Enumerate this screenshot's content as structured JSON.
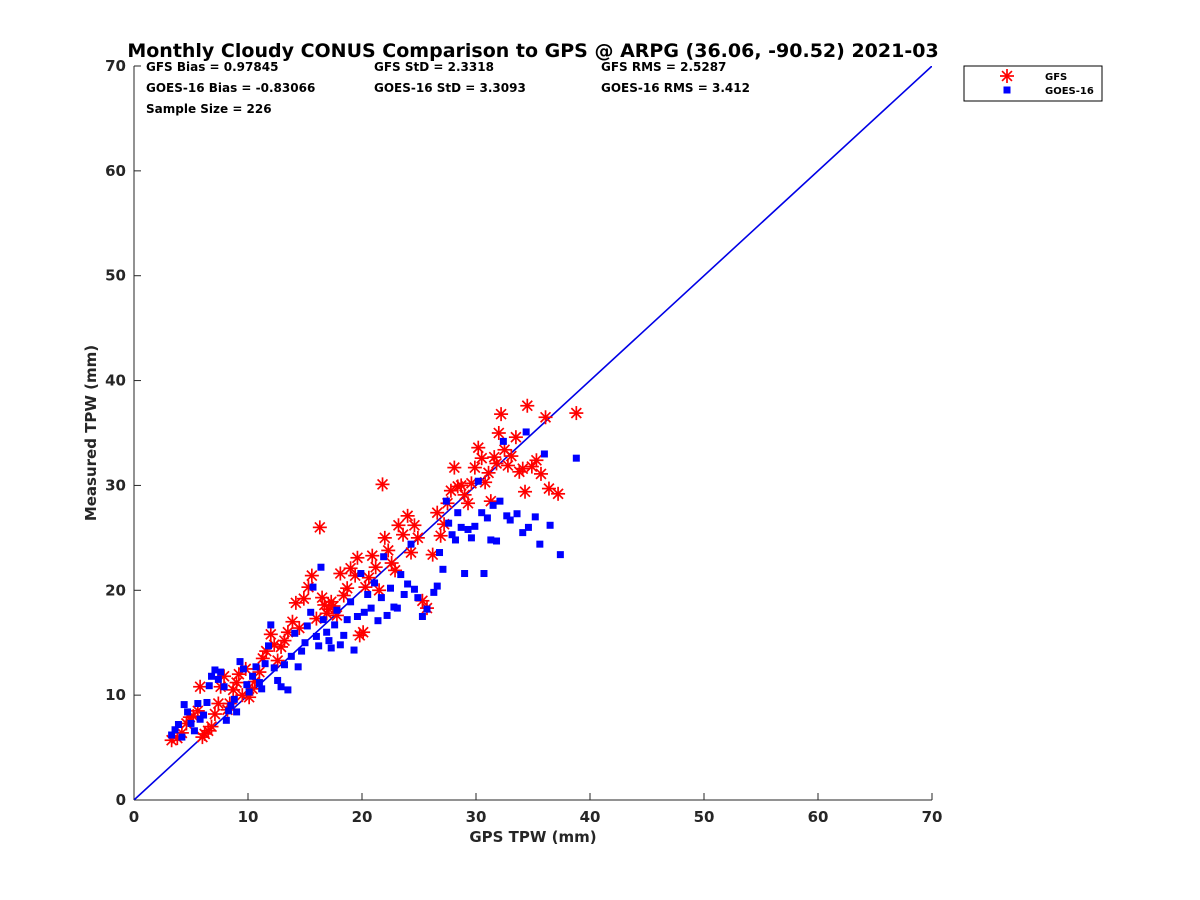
{
  "chart_data": {
    "type": "scatter",
    "title": "Monthly Cloudy CONUS Comparison to GPS @ ARPG (36.06, -90.52) 2021-03",
    "xlabel": "GPS TPW (mm)",
    "ylabel": "Measured TPW (mm)",
    "xlim": [
      0,
      70
    ],
    "ylim": [
      0,
      70
    ],
    "xticks": [
      "0",
      "10",
      "20",
      "30",
      "40",
      "50",
      "60",
      "70"
    ],
    "yticks": [
      "0",
      "10",
      "20",
      "30",
      "40",
      "50",
      "60",
      "70"
    ],
    "grid": false,
    "legend_position": "top-right-outside",
    "stats": {
      "gfs_bias": "GFS Bias = 0.97845",
      "gfs_std": "GFS StD = 2.3318",
      "gfs_rms": "GFS RMS = 2.5287",
      "goes_bias": "GOES-16 Bias = -0.83066",
      "goes_std": "GOES-16 StD = 3.3093",
      "goes_rms": "GOES-16 RMS = 3.412",
      "sample_size": "Sample Size = 226"
    },
    "reference_line": {
      "from": [
        0,
        0
      ],
      "to": [
        70,
        70
      ],
      "color": "#0000e6"
    },
    "series": [
      {
        "name": "GFS",
        "marker": "asterisk",
        "color": "#ff0000",
        "points": [
          [
            3.3,
            5.7
          ],
          [
            3.8,
            5.9
          ],
          [
            4.2,
            6.4
          ],
          [
            4.6,
            7.3
          ],
          [
            4.9,
            7.9
          ],
          [
            5.2,
            8.0
          ],
          [
            5.6,
            8.5
          ],
          [
            5.8,
            10.8
          ],
          [
            6.0,
            6.0
          ],
          [
            6.2,
            6.3
          ],
          [
            6.5,
            6.6
          ],
          [
            6.8,
            7.0
          ],
          [
            7.1,
            8.2
          ],
          [
            7.4,
            9.2
          ],
          [
            7.6,
            10.8
          ],
          [
            7.9,
            11.8
          ],
          [
            8.2,
            8.6
          ],
          [
            8.4,
            9.2
          ],
          [
            8.7,
            10.5
          ],
          [
            9.0,
            11.2
          ],
          [
            9.2,
            12.0
          ],
          [
            9.5,
            10.0
          ],
          [
            9.8,
            12.5
          ],
          [
            10.1,
            9.8
          ],
          [
            10.4,
            10.6
          ],
          [
            10.6,
            11.3
          ],
          [
            11.0,
            12.2
          ],
          [
            11.3,
            13.5
          ],
          [
            11.6,
            14.2
          ],
          [
            12.0,
            15.8
          ],
          [
            12.3,
            14.8
          ],
          [
            12.6,
            13.3
          ],
          [
            12.9,
            14.6
          ],
          [
            13.2,
            15.2
          ],
          [
            13.5,
            16.0
          ],
          [
            13.9,
            17.0
          ],
          [
            14.2,
            18.8
          ],
          [
            14.5,
            16.4
          ],
          [
            14.9,
            19.2
          ],
          [
            15.3,
            20.3
          ],
          [
            15.6,
            21.4
          ],
          [
            16.0,
            17.3
          ],
          [
            16.3,
            26.0
          ],
          [
            16.5,
            19.3
          ],
          [
            16.7,
            18.6
          ],
          [
            16.9,
            17.8
          ],
          [
            17.1,
            18.2
          ],
          [
            17.3,
            18.9
          ],
          [
            17.5,
            18.5
          ],
          [
            17.8,
            17.6
          ],
          [
            18.1,
            21.6
          ],
          [
            18.4,
            19.5
          ],
          [
            18.7,
            20.2
          ],
          [
            19.0,
            22.1
          ],
          [
            19.4,
            21.4
          ],
          [
            19.6,
            23.1
          ],
          [
            19.8,
            15.7
          ],
          [
            20.1,
            16.0
          ],
          [
            20.3,
            20.3
          ],
          [
            20.6,
            21.2
          ],
          [
            20.9,
            23.3
          ],
          [
            21.2,
            22.2
          ],
          [
            21.5,
            20.0
          ],
          [
            21.8,
            30.1
          ],
          [
            22.0,
            25.0
          ],
          [
            22.3,
            23.8
          ],
          [
            22.6,
            22.6
          ],
          [
            22.9,
            21.9
          ],
          [
            23.2,
            26.2
          ],
          [
            23.6,
            25.3
          ],
          [
            24.0,
            27.1
          ],
          [
            24.3,
            23.6
          ],
          [
            24.6,
            26.2
          ],
          [
            24.9,
            25.0
          ],
          [
            25.3,
            19.0
          ],
          [
            25.7,
            18.3
          ],
          [
            26.2,
            23.4
          ],
          [
            26.6,
            27.4
          ],
          [
            26.9,
            25.2
          ],
          [
            27.2,
            26.3
          ],
          [
            27.5,
            28.3
          ],
          [
            27.8,
            29.5
          ],
          [
            28.1,
            31.7
          ],
          [
            28.4,
            29.9
          ],
          [
            28.7,
            30.0
          ],
          [
            29.0,
            29.1
          ],
          [
            29.3,
            28.3
          ],
          [
            29.6,
            30.2
          ],
          [
            29.9,
            31.7
          ],
          [
            30.2,
            33.6
          ],
          [
            30.5,
            32.6
          ],
          [
            30.8,
            30.3
          ],
          [
            31.1,
            31.2
          ],
          [
            31.3,
            28.5
          ],
          [
            31.6,
            32.7
          ],
          [
            31.8,
            32.1
          ],
          [
            32.0,
            35.0
          ],
          [
            32.2,
            36.8
          ],
          [
            32.5,
            33.4
          ],
          [
            32.8,
            31.9
          ],
          [
            33.1,
            32.8
          ],
          [
            33.5,
            34.6
          ],
          [
            33.8,
            31.3
          ],
          [
            34.1,
            31.6
          ],
          [
            34.3,
            29.4
          ],
          [
            34.5,
            37.6
          ],
          [
            34.9,
            31.8
          ],
          [
            35.3,
            32.4
          ],
          [
            35.7,
            31.1
          ],
          [
            36.1,
            36.5
          ],
          [
            36.4,
            29.7
          ],
          [
            37.2,
            29.2
          ],
          [
            38.8,
            36.9
          ]
        ]
      },
      {
        "name": "GOES-16",
        "marker": "square",
        "color": "#0000ff",
        "points": [
          [
            3.3,
            6.2
          ],
          [
            3.6,
            6.7
          ],
          [
            3.9,
            7.2
          ],
          [
            4.2,
            6.0
          ],
          [
            4.4,
            9.1
          ],
          [
            4.7,
            8.4
          ],
          [
            5.0,
            7.3
          ],
          [
            5.3,
            6.6
          ],
          [
            5.6,
            9.2
          ],
          [
            5.8,
            7.7
          ],
          [
            6.1,
            8.1
          ],
          [
            6.4,
            9.3
          ],
          [
            6.6,
            10.9
          ],
          [
            6.8,
            11.8
          ],
          [
            7.1,
            12.4
          ],
          [
            7.4,
            11.5
          ],
          [
            7.6,
            12.2
          ],
          [
            7.9,
            10.8
          ],
          [
            8.1,
            7.6
          ],
          [
            8.3,
            8.5
          ],
          [
            8.5,
            9.0
          ],
          [
            8.8,
            9.6
          ],
          [
            9.0,
            8.4
          ],
          [
            9.3,
            13.2
          ],
          [
            9.6,
            12.5
          ],
          [
            9.9,
            11.0
          ],
          [
            10.1,
            10.3
          ],
          [
            10.4,
            11.8
          ],
          [
            10.7,
            12.7
          ],
          [
            11.0,
            11.2
          ],
          [
            11.2,
            10.6
          ],
          [
            11.5,
            13.0
          ],
          [
            11.8,
            14.7
          ],
          [
            12.0,
            16.7
          ],
          [
            12.3,
            12.6
          ],
          [
            12.6,
            11.4
          ],
          [
            12.9,
            10.8
          ],
          [
            13.2,
            12.9
          ],
          [
            13.5,
            10.5
          ],
          [
            13.8,
            13.7
          ],
          [
            14.1,
            15.9
          ],
          [
            14.4,
            12.7
          ],
          [
            14.7,
            14.2
          ],
          [
            15.0,
            15.0
          ],
          [
            15.2,
            16.6
          ],
          [
            15.5,
            17.9
          ],
          [
            15.7,
            20.3
          ],
          [
            16.0,
            15.6
          ],
          [
            16.2,
            14.7
          ],
          [
            16.4,
            22.2
          ],
          [
            16.6,
            17.2
          ],
          [
            16.9,
            16.0
          ],
          [
            17.1,
            15.2
          ],
          [
            17.3,
            14.5
          ],
          [
            17.6,
            16.7
          ],
          [
            17.8,
            18.1
          ],
          [
            18.1,
            14.8
          ],
          [
            18.4,
            15.7
          ],
          [
            18.7,
            17.2
          ],
          [
            19.0,
            18.9
          ],
          [
            19.3,
            14.3
          ],
          [
            19.6,
            17.5
          ],
          [
            19.9,
            21.6
          ],
          [
            20.2,
            17.9
          ],
          [
            20.5,
            19.6
          ],
          [
            20.8,
            18.3
          ],
          [
            21.1,
            20.7
          ],
          [
            21.4,
            17.1
          ],
          [
            21.7,
            19.3
          ],
          [
            21.9,
            23.2
          ],
          [
            22.2,
            17.6
          ],
          [
            22.5,
            20.2
          ],
          [
            22.8,
            18.4
          ],
          [
            23.1,
            18.3
          ],
          [
            23.4,
            21.5
          ],
          [
            23.7,
            19.6
          ],
          [
            24.0,
            20.6
          ],
          [
            24.3,
            24.4
          ],
          [
            24.6,
            20.1
          ],
          [
            24.9,
            19.3
          ],
          [
            25.3,
            17.5
          ],
          [
            25.7,
            18.2
          ],
          [
            26.3,
            19.8
          ],
          [
            26.6,
            20.4
          ],
          [
            26.8,
            23.6
          ],
          [
            27.1,
            22.0
          ],
          [
            27.4,
            28.5
          ],
          [
            27.6,
            26.4
          ],
          [
            27.9,
            25.3
          ],
          [
            28.2,
            24.8
          ],
          [
            28.4,
            27.4
          ],
          [
            28.7,
            26.0
          ],
          [
            29.0,
            21.6
          ],
          [
            29.3,
            25.8
          ],
          [
            29.6,
            25.0
          ],
          [
            29.9,
            26.1
          ],
          [
            30.2,
            30.4
          ],
          [
            30.5,
            27.4
          ],
          [
            30.7,
            21.6
          ],
          [
            31.0,
            26.9
          ],
          [
            31.3,
            24.8
          ],
          [
            31.5,
            28.1
          ],
          [
            31.8,
            24.7
          ],
          [
            32.1,
            28.5
          ],
          [
            32.4,
            34.2
          ],
          [
            32.7,
            27.1
          ],
          [
            33.0,
            26.7
          ],
          [
            33.6,
            27.3
          ],
          [
            34.1,
            25.5
          ],
          [
            34.4,
            35.1
          ],
          [
            34.6,
            26.0
          ],
          [
            35.2,
            27.0
          ],
          [
            35.6,
            24.4
          ],
          [
            36.0,
            33.0
          ],
          [
            36.5,
            26.2
          ],
          [
            37.4,
            23.4
          ],
          [
            38.8,
            32.6
          ]
        ]
      }
    ]
  }
}
